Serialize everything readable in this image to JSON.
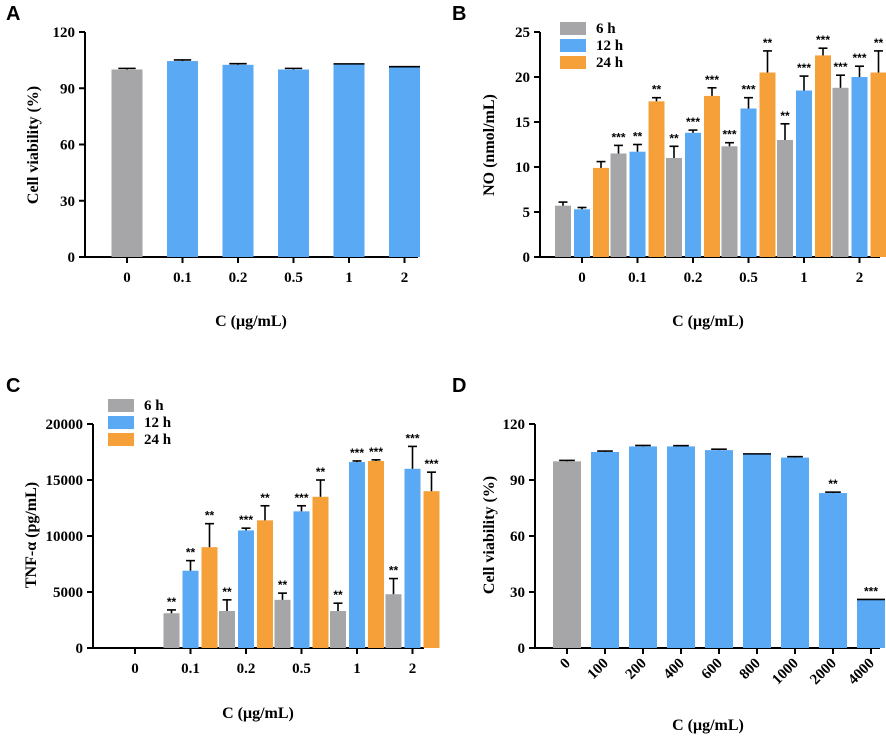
{
  "colors": {
    "gray": "#a6a6a8",
    "blue": "#5aa9f5",
    "orange": "#f6a03a"
  },
  "chart_data": [
    {
      "panel": "A",
      "type": "bar",
      "title": "",
      "xlabel": "C (μg/mL)",
      "ylabel": "Cell viability (%)",
      "ylim": [
        0,
        120
      ],
      "yticks": [
        0,
        30,
        60,
        90,
        120
      ],
      "categories": [
        "0",
        "0.1",
        "0.2",
        "0.5",
        "1",
        "2"
      ],
      "series": [
        {
          "name": "viability",
          "values": [
            100,
            104.5,
            102.5,
            100,
            103,
            101.5
          ],
          "errors": [
            0.6,
            0.6,
            0.6,
            0.6,
            0,
            0
          ],
          "colors": [
            "gray",
            "blue",
            "blue",
            "blue",
            "blue",
            "blue"
          ]
        }
      ]
    },
    {
      "panel": "B",
      "type": "bar",
      "title": "",
      "xlabel": "C (μg/mL)",
      "ylabel": "NO (nmol/mL)",
      "ylim": [
        0,
        25
      ],
      "yticks": [
        0,
        5,
        10,
        15,
        20,
        25
      ],
      "categories": [
        "0",
        "0.1",
        "0.2",
        "0.5",
        "1",
        "2"
      ],
      "legend": [
        "6 h",
        "12 h",
        "24 h"
      ],
      "series": [
        {
          "name": "6 h",
          "color": "gray",
          "values": [
            5.7,
            11.5,
            11.0,
            12.3,
            13.0,
            18.8
          ],
          "errors": [
            0.4,
            0.9,
            1.3,
            0.4,
            1.8,
            1.4
          ],
          "sig": [
            "",
            "***",
            "**",
            "***",
            "**",
            "***"
          ]
        },
        {
          "name": "12 h",
          "color": "blue",
          "values": [
            5.3,
            11.7,
            13.8,
            16.5,
            18.5,
            20.0
          ],
          "errors": [
            0.2,
            0.8,
            0.3,
            1.2,
            1.6,
            1.2
          ],
          "sig": [
            "",
            "**",
            "***",
            "***",
            "***",
            "***"
          ]
        },
        {
          "name": "24 h",
          "color": "orange",
          "values": [
            9.9,
            17.3,
            17.9,
            20.5,
            22.4,
            20.5
          ],
          "errors": [
            0.7,
            0.4,
            0.9,
            2.4,
            0.8,
            2.4
          ],
          "sig": [
            "",
            "**",
            "***",
            "**",
            "***",
            "**"
          ]
        }
      ]
    },
    {
      "panel": "C",
      "type": "bar",
      "title": "",
      "xlabel": "C (μg/mL)",
      "ylabel": "TNF-α (pg/mL)",
      "ylim": [
        0,
        20000
      ],
      "yticks": [
        0,
        5000,
        10000,
        15000,
        20000
      ],
      "categories": [
        "0",
        "0.1",
        "0.2",
        "0.5",
        "1",
        "2"
      ],
      "legend": [
        "6 h",
        "12 h",
        "24 h"
      ],
      "series": [
        {
          "name": "6 h",
          "color": "gray",
          "values": [
            0,
            3100,
            3300,
            4300,
            3300,
            4800
          ],
          "errors": [
            0,
            300,
            1000,
            600,
            700,
            1400
          ],
          "sig": [
            "",
            "**",
            "**",
            "**",
            "**",
            "**"
          ]
        },
        {
          "name": "12 h",
          "color": "blue",
          "values": [
            0,
            6900,
            10500,
            12200,
            16600,
            16000
          ],
          "errors": [
            0,
            900,
            200,
            500,
            100,
            2000
          ],
          "sig": [
            "",
            "**",
            "***",
            "***",
            "***",
            "***"
          ]
        },
        {
          "name": "24 h",
          "color": "orange",
          "values": [
            0,
            9000,
            11400,
            13500,
            16700,
            14000
          ],
          "errors": [
            0,
            2100,
            1300,
            1500,
            100,
            1700
          ],
          "sig": [
            "",
            "**",
            "**",
            "**",
            "***",
            "***"
          ]
        }
      ]
    },
    {
      "panel": "D",
      "type": "bar",
      "title": "",
      "xlabel": "C (μg/mL)",
      "ylabel": "Cell viability (%)",
      "ylim": [
        0,
        120
      ],
      "yticks": [
        0,
        30,
        60,
        90,
        120
      ],
      "categories": [
        "0",
        "100",
        "200",
        "400",
        "600",
        "800",
        "1000",
        "2000",
        "4000"
      ],
      "rotate_xticks": true,
      "series": [
        {
          "name": "viability",
          "values": [
            100,
            105,
            108,
            108,
            106,
            104,
            102,
            83,
            26
          ],
          "errors": [
            0.5,
            0.5,
            0.5,
            0.4,
            0.5,
            0,
            0.5,
            0.5,
            0
          ],
          "colors": [
            "gray",
            "blue",
            "blue",
            "blue",
            "blue",
            "blue",
            "blue",
            "blue",
            "blue"
          ],
          "sig": [
            "",
            "",
            "",
            "",
            "",
            "",
            "",
            "**",
            "***"
          ]
        }
      ]
    }
  ]
}
